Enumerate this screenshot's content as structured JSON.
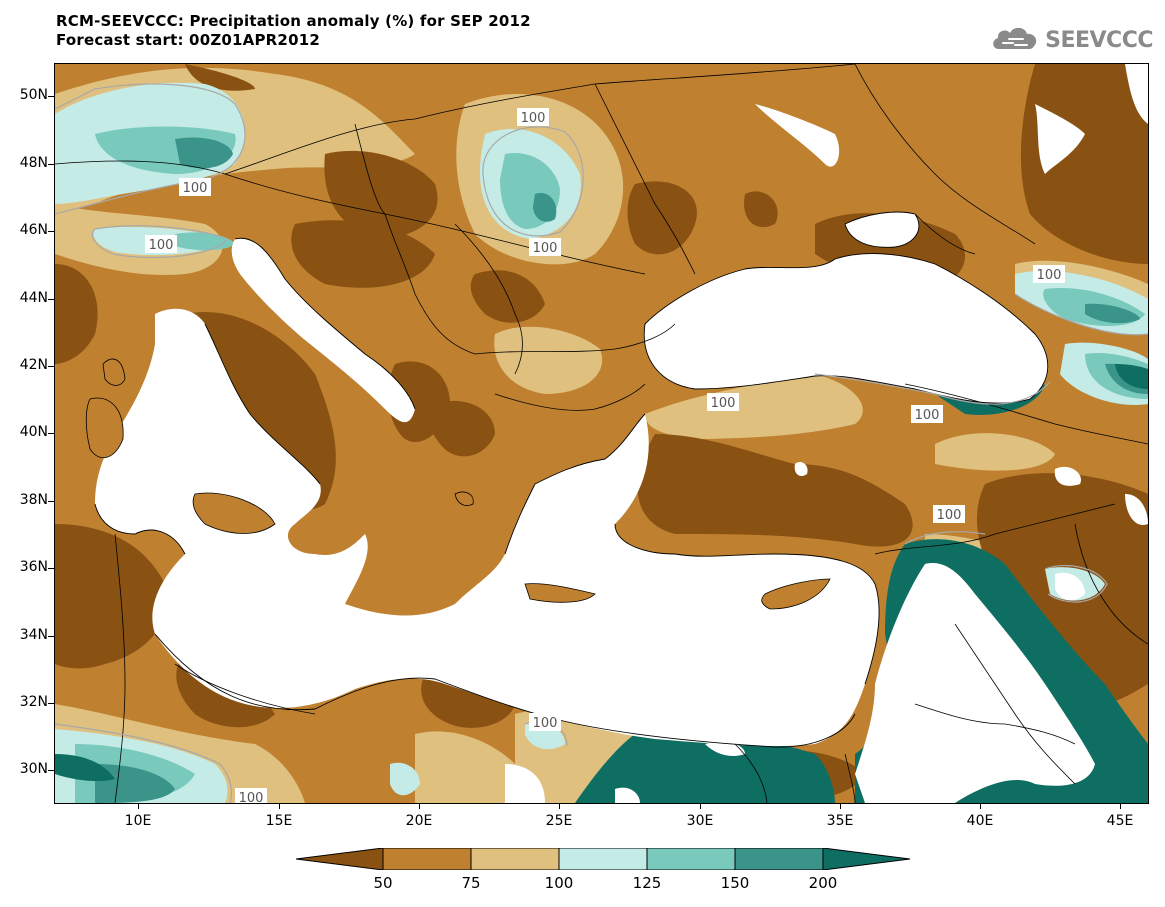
{
  "header": {
    "title_line1": "RCM-SEEVCCC: Precipitation anomaly (%) for SEP 2012",
    "title_line2": "Forecast start: 00Z01APR2012"
  },
  "logo": {
    "text": "SEEVCCC",
    "icon": "cloud-icon"
  },
  "map": {
    "lon_range": [
      7,
      46
    ],
    "lat_range": [
      29,
      51
    ],
    "lat_labels": [
      "50N",
      "48N",
      "46N",
      "44N",
      "42N",
      "40N",
      "38N",
      "36N",
      "34N",
      "32N",
      "30N"
    ],
    "lon_labels": [
      "10E",
      "15E",
      "20E",
      "25E",
      "30E",
      "35E",
      "40E",
      "45E"
    ],
    "contour_label": "100",
    "colors": {
      "lt50": "#8a5212",
      "50_75": "#bf8130",
      "75_100": "#dfc07e",
      "100_125": "#c5ebe6",
      "125_150": "#79cabd",
      "150_200": "#3a948a",
      "gt200": "#0d6e61",
      "sea": "#ffffff"
    }
  },
  "colorbar": {
    "labels": [
      "50",
      "75",
      "100",
      "125",
      "150",
      "200"
    ],
    "colors": [
      "#8a5212",
      "#bf8130",
      "#dfc07e",
      "#c5ebe6",
      "#79cabd",
      "#3a948a",
      "#0d6e61"
    ]
  }
}
